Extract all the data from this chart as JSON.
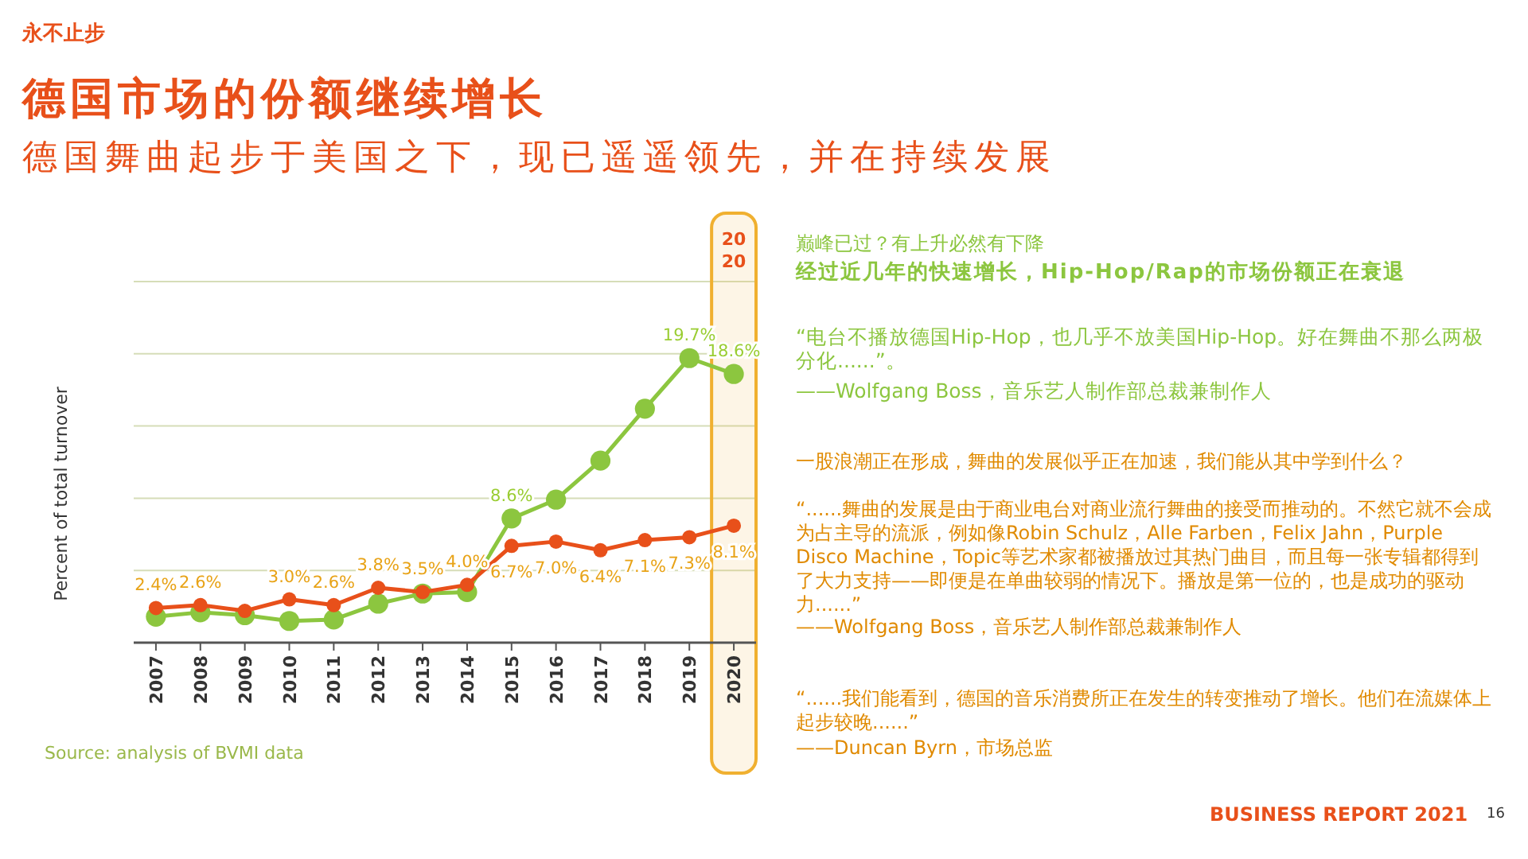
{
  "chart_data": {
    "type": "line",
    "title": "德国市场的份额继续增长",
    "subtitle": "德国舞曲起步于美国之下，现已遥遥领先，并在持续发展",
    "ylabel": "Percent of total turnover",
    "categories": [
      "2007",
      "2008",
      "2009",
      "2010",
      "2011",
      "2012",
      "2013",
      "2014",
      "2015",
      "2016",
      "2017",
      "2018",
      "2019",
      "2020"
    ],
    "series": [
      {
        "color": "#8cc63f",
        "values": [
          1.8,
          2.1,
          1.9,
          1.5,
          1.6,
          2.7,
          3.4,
          3.5,
          8.6,
          9.9,
          12.6,
          16.2,
          19.7,
          18.6
        ],
        "value_labels": [
          null,
          null,
          null,
          null,
          null,
          null,
          null,
          null,
          "8.6%",
          null,
          null,
          null,
          "19.7%",
          "18.6%"
        ]
      },
      {
        "color": "#e8501a",
        "values": [
          2.4,
          2.6,
          2.2,
          3.0,
          2.6,
          3.8,
          3.5,
          4.0,
          6.7,
          7.0,
          6.4,
          7.1,
          7.3,
          8.1
        ],
        "value_labels": [
          "2.4%",
          "2.6%",
          null,
          "3.0%",
          "2.6%",
          "3.8%",
          "3.5%",
          "4.0%",
          "6.7%",
          "7.0%",
          "6.4%",
          "7.1%",
          "7.3%",
          "8.1%"
        ]
      }
    ],
    "ylim": [
      0,
      25
    ],
    "yticks": [
      {
        "value": 0,
        "label": null
      },
      {
        "value": 5,
        "label": null
      },
      {
        "value": 10,
        "label": null
      },
      {
        "value": 15,
        "label": null
      },
      {
        "value": 20,
        "label": null
      },
      {
        "value": 25,
        "label": null
      }
    ],
    "tick_labels": "x",
    "grid": "y",
    "marker": "circle",
    "line_style": "solid",
    "bands": [
      {
        "axis": "x",
        "from": "2020",
        "to": "2020",
        "label": "20\n20",
        "color": "#f0b030"
      }
    ],
    "annotations": [
      "永不止步",
      "巅峰已过？有上升必然有下降",
      "经过近几年的快速增长，Hip-Hop/Rap的市场份额正在衰退",
      "“电台不播放德国Hip-Hop，也几乎不放美国Hip-Hop。好在舞曲不那么两极分化......”。",
      "——Wolfgang Boss，音乐艺人制作部总裁兼制作人",
      "一股浪潮正在形成，舞曲的发展似乎正在加速，我们能从其中学到什么？",
      "“......舞曲的发展是由于商业电台对商业流行舞曲的接受而推动的。不然它就不会成为占主导的流派，例如像Robin Schulz，Alle Farben，Felix Jahn，Purple Disco Machine，Topic等艺术家都被播放过其热门曲目，而且每一张专辑都得到了大力支持——即便是在单曲较弱的情况下。播放是第一位的，也是成功的驱动力......”",
      "——Wolfgang Boss，音乐艺人制作部总裁兼制作人",
      "“......我们能看到，德国的音乐消费所正在发生的转变推动了增长。他们在流媒体上起步较晚......”",
      "——Duncan Byrn，市场总监",
      "Source: analysis of BVMI data",
      "BUSINESS REPORT 2021",
      "16"
    ]
  }
}
